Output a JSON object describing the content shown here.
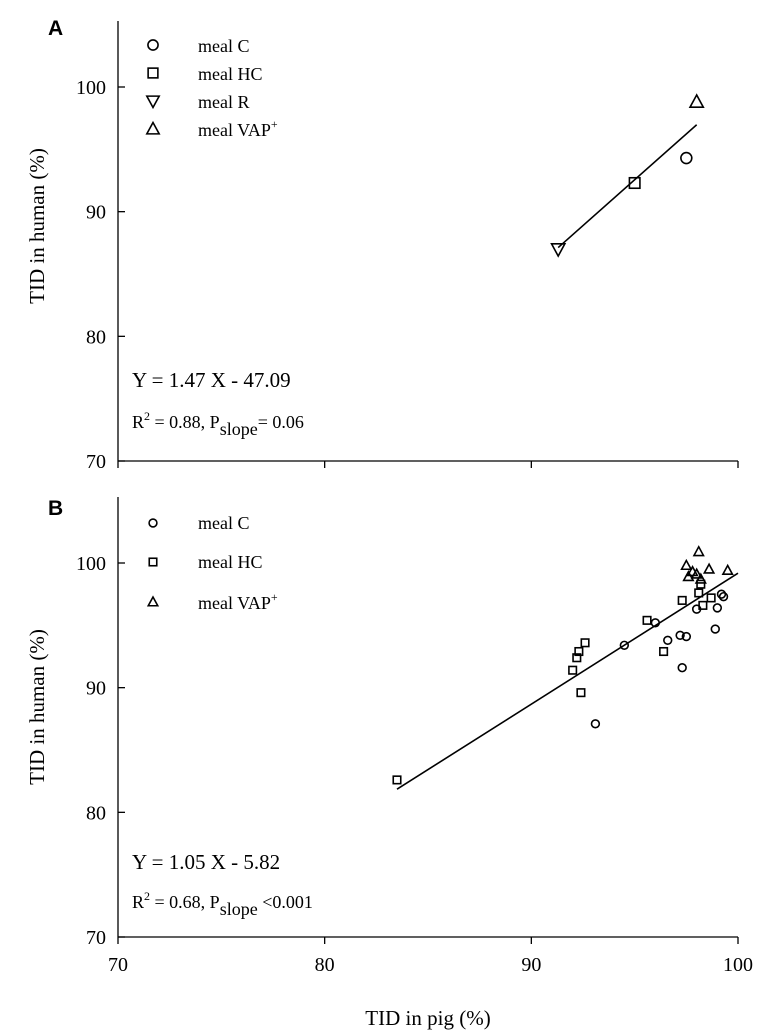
{
  "figure": {
    "x_axis_label": "TID  in pig (%)"
  },
  "chart_data": [
    {
      "panel_label": "A",
      "type": "scatter",
      "ylabel": "TID in human (%)",
      "xlim": [
        70,
        100
      ],
      "ylim": [
        70,
        100
      ],
      "x_ticks": [
        70,
        80,
        90,
        100
      ],
      "y_ticks": [
        70,
        80,
        90,
        100
      ],
      "y_tick_labels": [
        "70",
        "80",
        "90",
        "100"
      ],
      "x_tick_labels_shown": false,
      "legend": [
        {
          "label": "meal C",
          "marker": "circle"
        },
        {
          "label": "meal HC",
          "marker": "square"
        },
        {
          "label": "meal R",
          "marker": "triangle-down"
        },
        {
          "label": "meal VAP",
          "marker": "triangle-up",
          "superscript": "+"
        }
      ],
      "series": [
        {
          "name": "meal C",
          "marker": "circle",
          "points": [
            [
              97.5,
              94.3
            ]
          ]
        },
        {
          "name": "meal HC",
          "marker": "square",
          "points": [
            [
              95.0,
              92.3
            ]
          ]
        },
        {
          "name": "meal R",
          "marker": "triangle-down",
          "points": [
            [
              91.3,
              87.0
            ]
          ]
        },
        {
          "name": "meal VAP",
          "marker": "triangle-up",
          "points": [
            [
              98.0,
              98.8
            ]
          ]
        }
      ],
      "regression_line": {
        "slope": 1.47,
        "intercept": -47.09,
        "x_range": [
          91.3,
          98.0
        ]
      },
      "equation": "Y = 1.47 X - 47.09",
      "stats": {
        "r2_prefix": "R",
        "r2_sup": "2",
        "r2_rest": " = 0.88, P",
        "p_sub": "slope",
        "p_rest": "= 0.06"
      }
    },
    {
      "panel_label": "B",
      "type": "scatter",
      "ylabel": "TID in human (%)",
      "xlim": [
        70,
        100
      ],
      "ylim": [
        70,
        100
      ],
      "x_ticks": [
        70,
        80,
        90,
        100
      ],
      "y_ticks": [
        70,
        80,
        90,
        100
      ],
      "x_tick_labels": [
        "70",
        "80",
        "90",
        "100"
      ],
      "y_tick_labels": [
        "70",
        "80",
        "90",
        "100"
      ],
      "legend": [
        {
          "label": "meal C",
          "marker": "circle"
        },
        {
          "label": "meal HC",
          "marker": "square"
        },
        {
          "label": "meal VAP",
          "marker": "triangle-up",
          "superscript": "+"
        }
      ],
      "series": [
        {
          "name": "meal C",
          "marker": "circle",
          "points": [
            [
              93.1,
              87.1
            ],
            [
              94.5,
              93.4
            ],
            [
              96.0,
              95.2
            ],
            [
              96.6,
              93.8
            ],
            [
              97.2,
              94.2
            ],
            [
              97.3,
              91.6
            ],
            [
              97.5,
              94.1
            ],
            [
              98.0,
              96.3
            ],
            [
              98.9,
              94.7
            ],
            [
              99.0,
              96.4
            ],
            [
              99.2,
              97.5
            ],
            [
              99.3,
              97.3
            ]
          ]
        },
        {
          "name": "meal HC",
          "marker": "square",
          "points": [
            [
              83.5,
              82.6
            ],
            [
              92.0,
              91.4
            ],
            [
              92.2,
              92.4
            ],
            [
              92.3,
              92.9
            ],
            [
              92.4,
              89.6
            ],
            [
              92.6,
              93.6
            ],
            [
              95.6,
              95.4
            ],
            [
              96.4,
              92.9
            ],
            [
              97.3,
              97.0
            ],
            [
              98.1,
              97.6
            ],
            [
              98.3,
              96.6
            ],
            [
              98.7,
              97.2
            ],
            [
              98.2,
              98.3
            ]
          ]
        },
        {
          "name": "meal VAP",
          "marker": "triangle-up",
          "points": [
            [
              97.5,
              99.8
            ],
            [
              97.6,
              98.9
            ],
            [
              97.8,
              99.3
            ],
            [
              98.0,
              99.1
            ],
            [
              98.1,
              100.9
            ],
            [
              98.2,
              98.7
            ],
            [
              98.6,
              99.5
            ],
            [
              99.5,
              99.4
            ]
          ]
        }
      ],
      "regression_line": {
        "slope": 1.05,
        "intercept": -5.82,
        "x_range": [
          83.5,
          100
        ]
      },
      "equation": "Y = 1.05 X - 5.82",
      "stats": {
        "r2_prefix": "R",
        "r2_sup": "2",
        "r2_rest": " = 0.68, P",
        "p_sub": "slope",
        "p_rest": " <0.001"
      }
    }
  ]
}
